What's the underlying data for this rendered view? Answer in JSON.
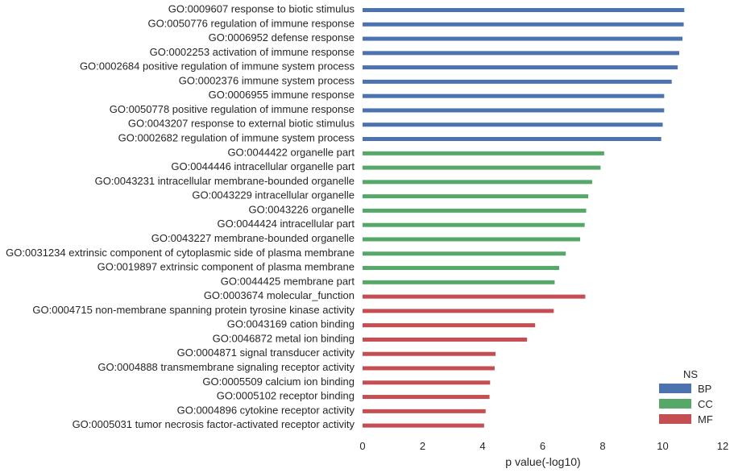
{
  "chart_data": {
    "type": "bar",
    "orientation": "horizontal",
    "xlabel": "p value(-log10)",
    "xlim": [
      0,
      12
    ],
    "xticks": [
      0,
      2,
      4,
      6,
      8,
      10,
      12
    ],
    "grid": false,
    "legend": {
      "title": "NS",
      "placement": "bottom-right",
      "entries": [
        {
          "name": "BP",
          "color": "#4c72b0"
        },
        {
          "name": "CC",
          "color": "#55a868"
        },
        {
          "name": "MF",
          "color": "#c44e52"
        }
      ]
    },
    "bars": [
      {
        "label": "GO:0009607 response to biotic stimulus",
        "value": 10.72,
        "ns": "BP"
      },
      {
        "label": "GO:0050776 regulation of immune response",
        "value": 10.7,
        "ns": "BP"
      },
      {
        "label": "GO:0006952 defense response",
        "value": 10.66,
        "ns": "BP"
      },
      {
        "label": "GO:0002253 activation of immune response",
        "value": 10.55,
        "ns": "BP"
      },
      {
        "label": "GO:0002684 positive regulation of immune system process",
        "value": 10.5,
        "ns": "BP"
      },
      {
        "label": "GO:0002376 immune system process",
        "value": 10.3,
        "ns": "BP"
      },
      {
        "label": "GO:0006955 immune response",
        "value": 10.05,
        "ns": "BP"
      },
      {
        "label": "GO:0050778 positive regulation of immune response",
        "value": 10.05,
        "ns": "BP"
      },
      {
        "label": "GO:0043207 response to external biotic stimulus",
        "value": 10.0,
        "ns": "BP"
      },
      {
        "label": "GO:0002682 regulation of immune system process",
        "value": 9.95,
        "ns": "BP"
      },
      {
        "label": "GO:0044422 organelle part",
        "value": 8.05,
        "ns": "CC"
      },
      {
        "label": "GO:0044446 intracellular organelle part",
        "value": 7.93,
        "ns": "CC"
      },
      {
        "label": "GO:0043231 intracellular membrane-bounded organelle",
        "value": 7.65,
        "ns": "CC"
      },
      {
        "label": "GO:0043229 intracellular organelle",
        "value": 7.52,
        "ns": "CC"
      },
      {
        "label": "GO:0043226 organelle",
        "value": 7.45,
        "ns": "CC"
      },
      {
        "label": "GO:0044424 intracellular part",
        "value": 7.4,
        "ns": "CC"
      },
      {
        "label": "GO:0043227 membrane-bounded organelle",
        "value": 7.25,
        "ns": "CC"
      },
      {
        "label": "GO:0031234 extrinsic component of cytoplasmic side of plasma membrane",
        "value": 6.77,
        "ns": "CC"
      },
      {
        "label": "GO:0019897 extrinsic component of plasma membrane",
        "value": 6.55,
        "ns": "CC"
      },
      {
        "label": "GO:0044425 membrane part",
        "value": 6.4,
        "ns": "CC"
      },
      {
        "label": "GO:0003674 molecular_function",
        "value": 7.42,
        "ns": "MF"
      },
      {
        "label": "GO:0004715 non-membrane spanning protein tyrosine kinase activity",
        "value": 6.37,
        "ns": "MF"
      },
      {
        "label": "GO:0043169 cation binding",
        "value": 5.75,
        "ns": "MF"
      },
      {
        "label": "GO:0046872 metal ion binding",
        "value": 5.48,
        "ns": "MF"
      },
      {
        "label": "GO:0004871 signal transducer activity",
        "value": 4.43,
        "ns": "MF"
      },
      {
        "label": "GO:0004888 transmembrane signaling receptor activity",
        "value": 4.4,
        "ns": "MF"
      },
      {
        "label": "GO:0005509 calcium ion binding",
        "value": 4.25,
        "ns": "MF"
      },
      {
        "label": "GO:0005102 receptor binding",
        "value": 4.23,
        "ns": "MF"
      },
      {
        "label": "GO:0004896 cytokine receptor activity",
        "value": 4.1,
        "ns": "MF"
      },
      {
        "label": "GO:0005031 tumor necrosis factor-activated receptor activity",
        "value": 4.05,
        "ns": "MF"
      }
    ]
  }
}
